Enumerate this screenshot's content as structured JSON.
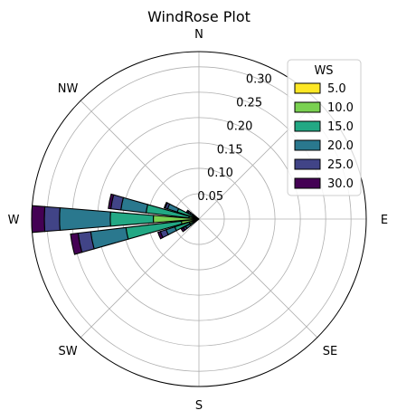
{
  "chart_data": {
    "type": "windrose",
    "title": "WindRose Plot",
    "direction_labels": [
      "N",
      "NW",
      "W",
      "SW",
      "S",
      "SE",
      "E"
    ],
    "radial_ticks": [
      "0.05",
      "0.10",
      "0.15",
      "0.20",
      "0.25",
      "0.30"
    ],
    "radial_values": [
      0.05,
      0.1,
      0.15,
      0.2,
      0.25,
      0.3
    ],
    "rmax": 0.33,
    "legend": {
      "title": "WS",
      "placement": "top-right",
      "entries": [
        "5.0",
        "10.0",
        "15.0",
        "20.0",
        "25.0",
        "30.0"
      ]
    },
    "bin_colors": [
      "#fde725",
      "#7ad151",
      "#22a884",
      "#2a788e",
      "#414487",
      "#440154"
    ],
    "grid": true,
    "sectors": [
      {
        "direction_deg": 112.5,
        "cumulative": [
          0.0,
          0.0,
          0.045,
          0.065,
          0.07,
          0.072
        ]
      },
      {
        "direction_deg": 101.25,
        "cumulative": [
          0.0,
          0.02,
          0.105,
          0.155,
          0.175,
          0.18
        ]
      },
      {
        "direction_deg": 90.0,
        "cumulative": [
          0.0,
          0.09,
          0.175,
          0.275,
          0.305,
          0.33
        ]
      },
      {
        "direction_deg": 78.75,
        "cumulative": [
          0.0,
          0.035,
          0.145,
          0.215,
          0.24,
          0.255
        ]
      },
      {
        "direction_deg": 67.5,
        "cumulative": [
          0.0,
          0.02,
          0.05,
          0.068,
          0.08,
          0.085
        ]
      },
      {
        "direction_deg": 56.25,
        "cumulative": [
          0.0,
          0.0,
          0.02,
          0.03,
          0.035,
          0.04
        ]
      },
      {
        "direction_deg": 123.75,
        "cumulative": [
          0.0,
          0.0,
          0.015,
          0.02,
          0.025,
          0.028
        ]
      }
    ]
  }
}
